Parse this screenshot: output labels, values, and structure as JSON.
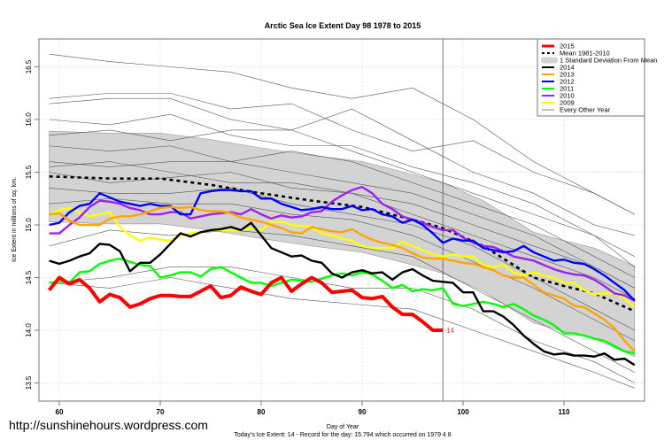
{
  "chart_data": {
    "type": "line",
    "title": "Arctic Sea Ice Extent Day 98 1978 to 2015",
    "xlabel": "Day of Year",
    "ylabel": "Ice Extent in millions of sq. km.",
    "subtitle": "Today's Ice Extent: 14  - Record for the day: 15.794 which occurred on 1979 4 8",
    "watermark": "http://sunshinehours.wordpress.com",
    "xlim": [
      59,
      117
    ],
    "ylim": [
      13.3,
      16.75
    ],
    "x_ticks": [
      "60",
      "70",
      "80",
      "90",
      "100",
      "110"
    ],
    "y_ticks": [
      "13.5",
      "14.0",
      "14.5",
      "15.0",
      "15.5",
      "16.0",
      "16.5"
    ],
    "grid": true,
    "current_day": 98,
    "current_value_label": "14",
    "legend_position": "top-right",
    "legend": [
      {
        "label": "2015",
        "color": "#ff0000",
        "style": "thick"
      },
      {
        "label": "Mean 1981-2010",
        "color": "#000000",
        "style": "dashed"
      },
      {
        "label": "1 Standard Deviation From Mean",
        "color": "#d3d3d3",
        "style": "band"
      },
      {
        "label": "2014",
        "color": "#000000",
        "style": "solid"
      },
      {
        "label": "2013",
        "color": "#ffa500",
        "style": "solid"
      },
      {
        "label": "2012",
        "color": "#0000ff",
        "style": "solid"
      },
      {
        "label": "2011",
        "color": "#00ff00",
        "style": "solid"
      },
      {
        "label": "2010",
        "color": "#a020f0",
        "style": "solid"
      },
      {
        "label": "2009",
        "color": "#ffff00",
        "style": "solid"
      },
      {
        "label": "Every Other Year",
        "color": "#808080",
        "style": "thin"
      }
    ],
    "band": {
      "x": [
        59,
        62,
        65,
        70,
        75,
        80,
        85,
        90,
        95,
        98,
        102,
        107,
        110,
        113,
        117
      ],
      "lower": [
        15.03,
        15.02,
        15.01,
        15.01,
        14.95,
        14.87,
        14.8,
        14.74,
        14.62,
        14.54,
        14.37,
        14.07,
        13.99,
        13.92,
        13.75
      ],
      "upper": [
        15.89,
        15.88,
        15.87,
        15.87,
        15.81,
        15.73,
        15.66,
        15.6,
        15.48,
        15.4,
        15.23,
        14.93,
        14.85,
        14.78,
        14.61
      ]
    },
    "mean": {
      "x": [
        59,
        62,
        65,
        70,
        75,
        80,
        85,
        90,
        95,
        98,
        102,
        107,
        110,
        113,
        117
      ],
      "y": [
        15.46,
        15.45,
        15.44,
        15.44,
        15.38,
        15.3,
        15.23,
        15.17,
        15.05,
        14.97,
        14.8,
        14.5,
        14.42,
        14.35,
        14.18
      ]
    },
    "other_years": {
      "x": [
        59,
        65,
        71,
        77,
        83,
        89,
        95,
        101,
        107,
        113,
        117
      ],
      "series": [
        [
          16.62,
          16.55,
          16.5,
          16.45,
          16.3,
          16.2,
          16.3,
          16.0,
          15.6,
          15.3,
          15.1
        ],
        [
          16.2,
          16.25,
          16.25,
          16.1,
          16.15,
          15.9,
          15.7,
          15.8,
          15.5,
          15.3,
          15.1
        ],
        [
          16.15,
          16.2,
          16.2,
          16.0,
          15.9,
          16.1,
          15.8,
          15.5,
          15.3,
          15.0,
          14.9
        ],
        [
          16.0,
          15.95,
          16.05,
          15.85,
          15.75,
          15.75,
          15.55,
          15.4,
          15.2,
          14.9,
          14.7
        ],
        [
          15.85,
          15.9,
          15.8,
          15.9,
          15.9,
          15.7,
          15.5,
          15.3,
          15.1,
          14.9,
          14.6
        ],
        [
          15.75,
          15.7,
          15.75,
          15.6,
          15.7,
          15.6,
          15.4,
          15.2,
          15.0,
          14.7,
          14.5
        ],
        [
          15.6,
          15.55,
          15.6,
          15.6,
          15.5,
          15.4,
          15.3,
          15.1,
          14.9,
          14.6,
          14.4
        ],
        [
          15.5,
          15.4,
          15.45,
          15.5,
          15.35,
          15.3,
          15.1,
          14.9,
          14.7,
          14.5,
          14.3
        ],
        [
          15.35,
          15.3,
          15.3,
          15.35,
          15.2,
          15.1,
          15.0,
          14.8,
          14.5,
          14.2,
          14.0
        ],
        [
          15.2,
          15.25,
          15.2,
          15.2,
          15.1,
          15.05,
          14.9,
          14.65,
          14.4,
          14.1,
          13.9
        ],
        [
          14.8,
          14.95,
          14.9,
          14.95,
          14.9,
          14.8,
          14.7,
          14.4,
          14.1,
          13.8,
          13.6
        ],
        [
          14.45,
          14.5,
          14.6,
          14.6,
          14.5,
          14.4,
          14.4,
          14.2,
          13.9,
          13.7,
          13.5
        ],
        [
          14.45,
          14.4,
          14.5,
          14.4,
          14.3,
          14.25,
          14.2,
          14.0,
          13.8,
          13.6,
          13.45
        ],
        [
          15.55,
          15.6,
          15.5,
          15.4,
          15.4,
          15.3,
          15.2,
          15.0,
          14.8,
          14.6,
          14.4
        ]
      ]
    },
    "series": [
      {
        "name": "2009",
        "color": "#ffff00",
        "x0": 59,
        "y": [
          15.1,
          15.14,
          15.16,
          15.12,
          15.08,
          15.1,
          15.12,
          14.98,
          14.9,
          14.85,
          14.88,
          14.86,
          14.85,
          14.9,
          14.92,
          14.93,
          14.95,
          14.95,
          14.95,
          14.95,
          14.97,
          14.95,
          15.03,
          15.03,
          15.0,
          14.99,
          14.98,
          14.92,
          14.9,
          14.87,
          14.85,
          14.8,
          14.78,
          14.78,
          14.78,
          14.84,
          14.8,
          14.76,
          14.72,
          14.7,
          14.72,
          14.7,
          14.7,
          14.62,
          14.6,
          14.62,
          14.55,
          14.52,
          14.55,
          14.52,
          14.5,
          14.45,
          14.45,
          14.38,
          14.34,
          14.35,
          14.35,
          14.3,
          14.22
        ]
      },
      {
        "name": "2010",
        "color": "#a020f0",
        "x0": 59,
        "y": [
          14.92,
          14.92,
          15.0,
          15.07,
          15.17,
          15.23,
          15.22,
          15.2,
          15.16,
          15.14,
          15.1,
          15.1,
          15.12,
          15.12,
          15.06,
          15.08,
          15.1,
          15.11,
          15.12,
          15.1,
          15.15,
          15.1,
          15.06,
          15.09,
          15.07,
          15.08,
          15.12,
          15.13,
          15.22,
          15.28,
          15.33,
          15.36,
          15.3,
          15.2,
          15.15,
          15.08,
          15.05,
          15.02,
          14.98,
          14.95,
          14.95,
          14.88,
          14.83,
          14.8,
          14.79,
          14.75,
          14.7,
          14.68,
          14.66,
          14.62,
          14.58,
          14.55,
          14.53,
          14.52,
          14.48,
          14.42,
          14.35,
          14.33,
          14.28
        ]
      },
      {
        "name": "2011",
        "color": "#00ff00",
        "x0": 59,
        "y": [
          14.45,
          14.46,
          14.45,
          14.55,
          14.56,
          14.63,
          14.66,
          14.68,
          14.65,
          14.62,
          14.61,
          14.5,
          14.52,
          14.55,
          14.55,
          14.51,
          14.58,
          14.6,
          14.55,
          14.5,
          14.45,
          14.45,
          14.42,
          14.45,
          14.48,
          14.47,
          14.46,
          14.49,
          14.52,
          14.54,
          14.52,
          14.55,
          14.53,
          14.47,
          14.4,
          14.43,
          14.37,
          14.39,
          14.38,
          14.4,
          14.25,
          14.23,
          14.25,
          14.27,
          14.25,
          14.22,
          14.25,
          14.2,
          14.14,
          14.1,
          14.05,
          13.97,
          13.97,
          13.95,
          13.92,
          13.9,
          13.85,
          13.8,
          13.78
        ]
      },
      {
        "name": "2012",
        "color": "#0000ff",
        "x0": 59,
        "y": [
          15.0,
          15.02,
          15.12,
          15.18,
          15.2,
          15.3,
          15.26,
          15.22,
          15.2,
          15.18,
          15.2,
          15.18,
          15.18,
          15.1,
          15.1,
          15.3,
          15.32,
          15.33,
          15.33,
          15.32,
          15.32,
          15.25,
          15.25,
          15.2,
          15.17,
          15.14,
          15.15,
          15.17,
          15.15,
          15.15,
          15.18,
          15.14,
          15.15,
          15.1,
          15.08,
          15.02,
          15.05,
          15.0,
          14.92,
          14.83,
          14.87,
          14.85,
          14.85,
          14.78,
          14.76,
          14.74,
          14.75,
          14.8,
          14.74,
          14.7,
          14.66,
          14.67,
          14.64,
          14.63,
          14.58,
          14.52,
          14.45,
          14.38,
          14.28
        ]
      },
      {
        "name": "2013",
        "color": "#ffa500",
        "x0": 59,
        "y": [
          15.1,
          15.11,
          15.04,
          15.0,
          15.0,
          15.0,
          15.06,
          15.08,
          15.08,
          15.1,
          15.13,
          15.16,
          15.17,
          15.16,
          15.17,
          15.14,
          15.13,
          15.13,
          15.11,
          15.07,
          15.05,
          15.03,
          15.0,
          14.97,
          14.93,
          14.92,
          14.98,
          14.96,
          14.94,
          14.93,
          14.96,
          14.9,
          14.86,
          14.83,
          14.81,
          14.78,
          14.73,
          14.69,
          14.68,
          14.68,
          14.66,
          14.64,
          14.63,
          14.6,
          14.57,
          14.52,
          14.5,
          14.5,
          14.43,
          14.36,
          14.33,
          14.3,
          14.23,
          14.22,
          14.16,
          14.1,
          14.02,
          13.9,
          13.8
        ]
      },
      {
        "name": "2014",
        "color": "#000000",
        "x0": 59,
        "y": [
          14.66,
          14.63,
          14.66,
          14.7,
          14.73,
          14.82,
          14.81,
          14.75,
          14.56,
          14.64,
          14.64,
          14.72,
          14.82,
          14.92,
          14.89,
          14.93,
          14.95,
          14.96,
          14.98,
          14.95,
          15.02,
          14.9,
          14.78,
          14.74,
          14.7,
          14.71,
          14.66,
          14.64,
          14.54,
          14.5,
          14.55,
          14.57,
          14.54,
          14.55,
          14.48,
          14.55,
          14.58,
          14.52,
          14.47,
          14.46,
          14.45,
          14.36,
          14.36,
          14.18,
          14.18,
          14.13,
          14.05,
          13.95,
          13.87,
          13.8,
          13.77,
          13.78,
          13.76,
          13.76,
          13.75,
          13.78,
          13.72,
          13.73,
          13.67
        ]
      },
      {
        "name": "2015",
        "color": "#ff0000",
        "x0": 59,
        "y": [
          14.38,
          14.5,
          14.44,
          14.48,
          14.4,
          14.27,
          14.34,
          14.31,
          14.22,
          14.25,
          14.3,
          14.33,
          14.33,
          14.32,
          14.32,
          14.37,
          14.42,
          14.31,
          14.33,
          14.41,
          14.37,
          14.34,
          14.45,
          14.5,
          14.37,
          14.44,
          14.5,
          14.45,
          14.36,
          14.37,
          14.38,
          14.31,
          14.3,
          14.32,
          14.22,
          14.15,
          14.15,
          14.08,
          14.0,
          14.0
        ]
      }
    ]
  }
}
